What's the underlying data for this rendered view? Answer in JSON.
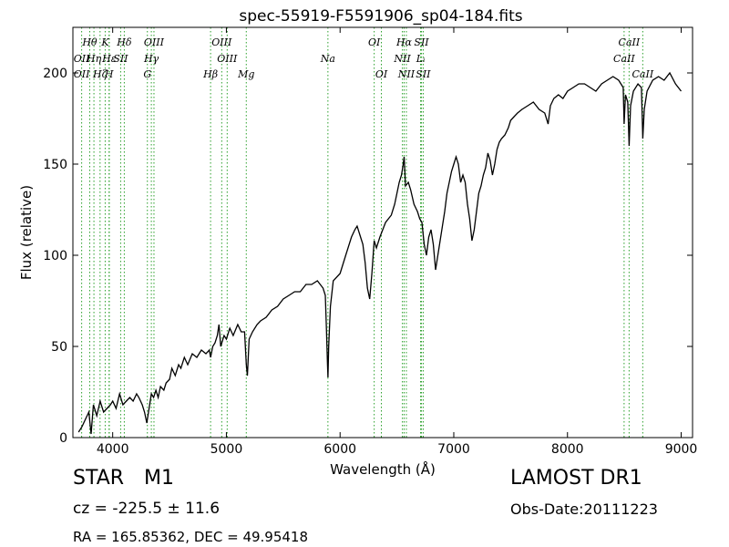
{
  "chart_data": {
    "type": "line",
    "title": "spec-55919-F5591906_sp04-184.fits",
    "xlabel": "Wavelength (Å)",
    "ylabel": "Flux (relative)",
    "xlim": [
      3650,
      9100
    ],
    "ylim": [
      0,
      225
    ],
    "xticks": [
      4000,
      5000,
      6000,
      7000,
      8000,
      9000
    ],
    "yticks": [
      0,
      50,
      100,
      150,
      200
    ],
    "grid": false,
    "series": [
      {
        "color": "#000000",
        "points": [
          [
            3700,
            3
          ],
          [
            3730,
            6
          ],
          [
            3760,
            10
          ],
          [
            3790,
            14
          ],
          [
            3810,
            2
          ],
          [
            3830,
            18
          ],
          [
            3860,
            12
          ],
          [
            3890,
            20
          ],
          [
            3920,
            14
          ],
          [
            3950,
            16
          ],
          [
            3980,
            18
          ],
          [
            4000,
            20
          ],
          [
            4030,
            16
          ],
          [
            4060,
            24
          ],
          [
            4090,
            18
          ],
          [
            4120,
            20
          ],
          [
            4150,
            22
          ],
          [
            4180,
            20
          ],
          [
            4210,
            24
          ],
          [
            4230,
            22
          ],
          [
            4260,
            18
          ],
          [
            4280,
            14
          ],
          [
            4300,
            8
          ],
          [
            4320,
            16
          ],
          [
            4340,
            24
          ],
          [
            4360,
            22
          ],
          [
            4380,
            26
          ],
          [
            4400,
            22
          ],
          [
            4420,
            28
          ],
          [
            4450,
            26
          ],
          [
            4470,
            30
          ],
          [
            4500,
            32
          ],
          [
            4520,
            38
          ],
          [
            4550,
            34
          ],
          [
            4580,
            40
          ],
          [
            4600,
            38
          ],
          [
            4630,
            44
          ],
          [
            4660,
            40
          ],
          [
            4700,
            46
          ],
          [
            4740,
            44
          ],
          [
            4780,
            48
          ],
          [
            4820,
            46
          ],
          [
            4850,
            48
          ],
          [
            4861,
            44
          ],
          [
            4880,
            50
          ],
          [
            4900,
            52
          ],
          [
            4920,
            56
          ],
          [
            4935,
            62
          ],
          [
            4950,
            50
          ],
          [
            4980,
            56
          ],
          [
            5000,
            54
          ],
          [
            5030,
            60
          ],
          [
            5060,
            56
          ],
          [
            5100,
            62
          ],
          [
            5130,
            58
          ],
          [
            5160,
            58
          ],
          [
            5175,
            40
          ],
          [
            5185,
            34
          ],
          [
            5200,
            54
          ],
          [
            5230,
            58
          ],
          [
            5270,
            62
          ],
          [
            5300,
            64
          ],
          [
            5350,
            66
          ],
          [
            5400,
            70
          ],
          [
            5450,
            72
          ],
          [
            5500,
            76
          ],
          [
            5550,
            78
          ],
          [
            5600,
            80
          ],
          [
            5650,
            80
          ],
          [
            5700,
            84
          ],
          [
            5750,
            84
          ],
          [
            5800,
            86
          ],
          [
            5850,
            82
          ],
          [
            5870,
            78
          ],
          [
            5880,
            60
          ],
          [
            5889,
            40
          ],
          [
            5893,
            33
          ],
          [
            5900,
            50
          ],
          [
            5915,
            72
          ],
          [
            5940,
            86
          ],
          [
            6000,
            90
          ],
          [
            6050,
            100
          ],
          [
            6100,
            110
          ],
          [
            6130,
            114
          ],
          [
            6150,
            116
          ],
          [
            6170,
            112
          ],
          [
            6200,
            106
          ],
          [
            6220,
            96
          ],
          [
            6240,
            82
          ],
          [
            6260,
            76
          ],
          [
            6280,
            90
          ],
          [
            6300,
            108
          ],
          [
            6320,
            104
          ],
          [
            6350,
            110
          ],
          [
            6400,
            118
          ],
          [
            6450,
            122
          ],
          [
            6480,
            128
          ],
          [
            6500,
            134
          ],
          [
            6520,
            140
          ],
          [
            6540,
            144
          ],
          [
            6555,
            150
          ],
          [
            6563,
            154
          ],
          [
            6575,
            138
          ],
          [
            6600,
            140
          ],
          [
            6620,
            136
          ],
          [
            6650,
            128
          ],
          [
            6680,
            124
          ],
          [
            6700,
            120
          ],
          [
            6720,
            118
          ],
          [
            6740,
            106
          ],
          [
            6760,
            100
          ],
          [
            6780,
            110
          ],
          [
            6800,
            114
          ],
          [
            6820,
            106
          ],
          [
            6840,
            92
          ],
          [
            6860,
            100
          ],
          [
            6880,
            108
          ],
          [
            6900,
            116
          ],
          [
            6920,
            124
          ],
          [
            6940,
            134
          ],
          [
            6960,
            140
          ],
          [
            6980,
            146
          ],
          [
            7000,
            150
          ],
          [
            7020,
            154
          ],
          [
            7040,
            150
          ],
          [
            7060,
            140
          ],
          [
            7080,
            144
          ],
          [
            7100,
            140
          ],
          [
            7120,
            128
          ],
          [
            7140,
            120
          ],
          [
            7160,
            108
          ],
          [
            7180,
            114
          ],
          [
            7200,
            124
          ],
          [
            7220,
            134
          ],
          [
            7240,
            138
          ],
          [
            7260,
            144
          ],
          [
            7280,
            148
          ],
          [
            7300,
            156
          ],
          [
            7320,
            152
          ],
          [
            7340,
            144
          ],
          [
            7360,
            150
          ],
          [
            7380,
            158
          ],
          [
            7400,
            162
          ],
          [
            7420,
            164
          ],
          [
            7450,
            166
          ],
          [
            7480,
            170
          ],
          [
            7500,
            174
          ],
          [
            7530,
            176
          ],
          [
            7560,
            178
          ],
          [
            7600,
            180
          ],
          [
            7650,
            182
          ],
          [
            7700,
            184
          ],
          [
            7750,
            180
          ],
          [
            7800,
            178
          ],
          [
            7830,
            172
          ],
          [
            7850,
            182
          ],
          [
            7880,
            186
          ],
          [
            7920,
            188
          ],
          [
            7960,
            186
          ],
          [
            8000,
            190
          ],
          [
            8050,
            192
          ],
          [
            8100,
            194
          ],
          [
            8150,
            194
          ],
          [
            8200,
            192
          ],
          [
            8250,
            190
          ],
          [
            8300,
            194
          ],
          [
            8350,
            196
          ],
          [
            8400,
            198
          ],
          [
            8450,
            196
          ],
          [
            8490,
            192
          ],
          [
            8498,
            172
          ],
          [
            8510,
            188
          ],
          [
            8530,
            184
          ],
          [
            8542,
            160
          ],
          [
            8555,
            182
          ],
          [
            8580,
            190
          ],
          [
            8620,
            194
          ],
          [
            8650,
            192
          ],
          [
            8662,
            164
          ],
          [
            8675,
            180
          ],
          [
            8700,
            190
          ],
          [
            8750,
            196
          ],
          [
            8800,
            198
          ],
          [
            8850,
            196
          ],
          [
            8900,
            200
          ],
          [
            8950,
            194
          ],
          [
            9000,
            190
          ]
        ]
      }
    ],
    "spectral_lines": [
      {
        "label": "Hθ",
        "x": 3798,
        "row": 1
      },
      {
        "label": "K",
        "x": 3934,
        "row": 1
      },
      {
        "label": "Hδ",
        "x": 4102,
        "row": 1
      },
      {
        "label": "OIII",
        "x": 4363,
        "row": 1
      },
      {
        "label": "OIII",
        "x": 4959,
        "row": 1
      },
      {
        "label": "OI",
        "x": 6300,
        "row": 1
      },
      {
        "label": "Hα",
        "x": 6563,
        "row": 1
      },
      {
        "label": "SII",
        "x": 6716,
        "row": 1
      },
      {
        "label": "CaII",
        "x": 8542,
        "row": 1
      },
      {
        "label": "Hε",
        "x": 3970,
        "row": 2
      },
      {
        "label": "SII",
        "x": 4070,
        "row": 2
      },
      {
        "label": "Hγ",
        "x": 4340,
        "row": 2
      },
      {
        "label": "OIII",
        "x": 5007,
        "row": 2
      },
      {
        "label": "Na",
        "x": 5893,
        "row": 2
      },
      {
        "label": "NII",
        "x": 6548,
        "row": 2
      },
      {
        "label": "Lᵢ",
        "x": 6708,
        "row": 2
      },
      {
        "label": "CaII",
        "x": 8498,
        "row": 2
      },
      {
        "label": "OII",
        "x": 3727,
        "row": 2
      },
      {
        "label": "Hη",
        "x": 3835,
        "row": 2
      },
      {
        "label": "OII",
        "x": 3727,
        "row": 3
      },
      {
        "label": "Hζ",
        "x": 3889,
        "row": 3
      },
      {
        "label": "H",
        "x": 3968,
        "row": 3
      },
      {
        "label": "G",
        "x": 4305,
        "row": 3
      },
      {
        "label": "Hβ",
        "x": 4861,
        "row": 3
      },
      {
        "label": "Mg",
        "x": 5175,
        "row": 3
      },
      {
        "label": "OI",
        "x": 6363,
        "row": 3
      },
      {
        "label": "NII",
        "x": 6583,
        "row": 3
      },
      {
        "label": "SII",
        "x": 6731,
        "row": 3
      },
      {
        "label": "CaII",
        "x": 8662,
        "row": 3
      }
    ],
    "line_color": "#2ca02c"
  },
  "info": {
    "object_class": "STAR",
    "object_subclass": "M1",
    "redshift_text": "cz = -225.5  ± 11.6",
    "coords_text": "RA = 165.85362, DEC = 49.95418",
    "survey": "LAMOST DR1",
    "obs_date": "Obs-Date:20111223"
  }
}
